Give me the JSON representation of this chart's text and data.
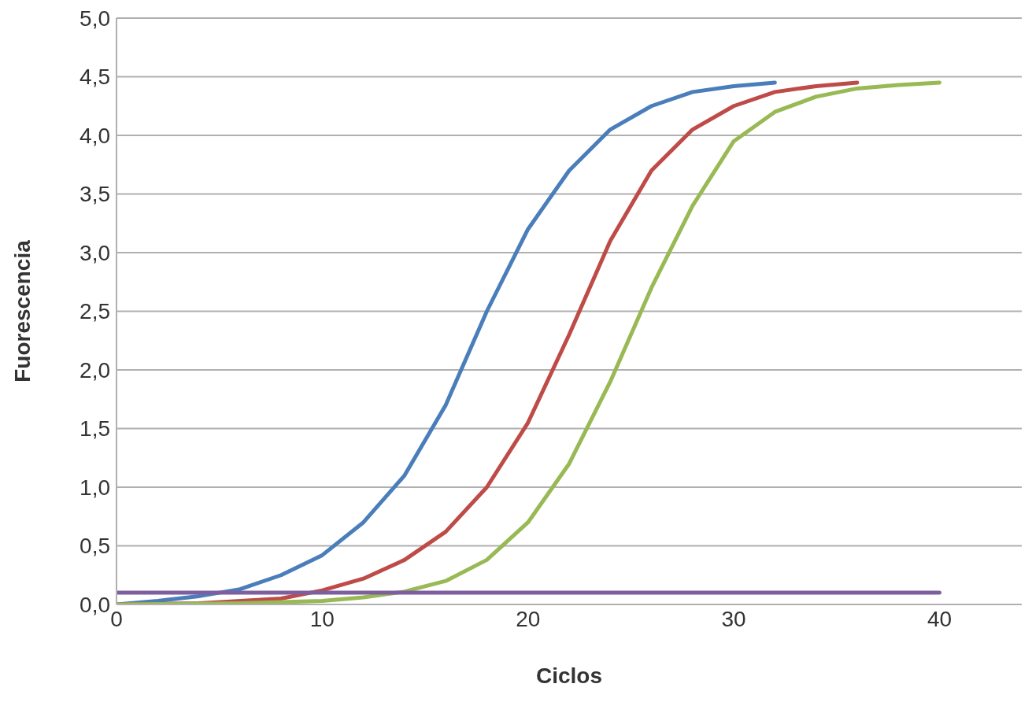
{
  "chart_data": {
    "type": "line",
    "xlabel": "Ciclos",
    "ylabel": "Fuorescencia",
    "xlim": [
      0,
      44
    ],
    "xticks": [
      0,
      10,
      20,
      30,
      40
    ],
    "ylim": [
      0,
      5
    ],
    "yticks": [
      {
        "value": 0,
        "label": "0,0"
      },
      {
        "value": 0.5,
        "label": "0,5"
      },
      {
        "value": 1,
        "label": "1,0"
      },
      {
        "value": 1.5,
        "label": "1,5"
      },
      {
        "value": 2,
        "label": "2,0"
      },
      {
        "value": 2.5,
        "label": "2,5"
      },
      {
        "value": 3,
        "label": "3,0"
      },
      {
        "value": 3.5,
        "label": "3,5"
      },
      {
        "value": 4,
        "label": "4,0"
      },
      {
        "value": 4.5,
        "label": "4,5"
      },
      {
        "value": 5,
        "label": "5,0"
      }
    ],
    "grid": "y",
    "marker": "none",
    "line_style": "solid",
    "series": [
      {
        "color": "#4a7ebb",
        "x": [
          0,
          2,
          4,
          6,
          8,
          10,
          12,
          14,
          16,
          18,
          20,
          22,
          24,
          26,
          28,
          30,
          32
        ],
        "values": [
          0,
          0.03,
          0.07,
          0.13,
          0.25,
          0.42,
          0.7,
          1.1,
          1.7,
          2.5,
          3.2,
          3.7,
          4.05,
          4.25,
          4.37,
          4.42,
          4.45
        ]
      },
      {
        "color": "#be4b48",
        "x": [
          0,
          4,
          8,
          10,
          12,
          14,
          16,
          18,
          20,
          22,
          24,
          26,
          28,
          30,
          32,
          34,
          36
        ],
        "values": [
          0,
          0.01,
          0.05,
          0.12,
          0.22,
          0.38,
          0.62,
          1.0,
          1.55,
          2.3,
          3.1,
          3.7,
          4.05,
          4.25,
          4.37,
          4.42,
          4.45
        ]
      },
      {
        "color": "#98b954",
        "x": [
          0,
          6,
          10,
          12,
          14,
          16,
          18,
          20,
          22,
          24,
          26,
          28,
          30,
          32,
          34,
          36,
          38,
          40
        ],
        "values": [
          0,
          0.01,
          0.03,
          0.06,
          0.11,
          0.2,
          0.38,
          0.7,
          1.2,
          1.9,
          2.7,
          3.4,
          3.95,
          4.2,
          4.33,
          4.4,
          4.43,
          4.45
        ]
      },
      {
        "color": "#7d5fa0",
        "x": [
          0,
          40
        ],
        "values": [
          0.1,
          0.1
        ]
      }
    ]
  }
}
